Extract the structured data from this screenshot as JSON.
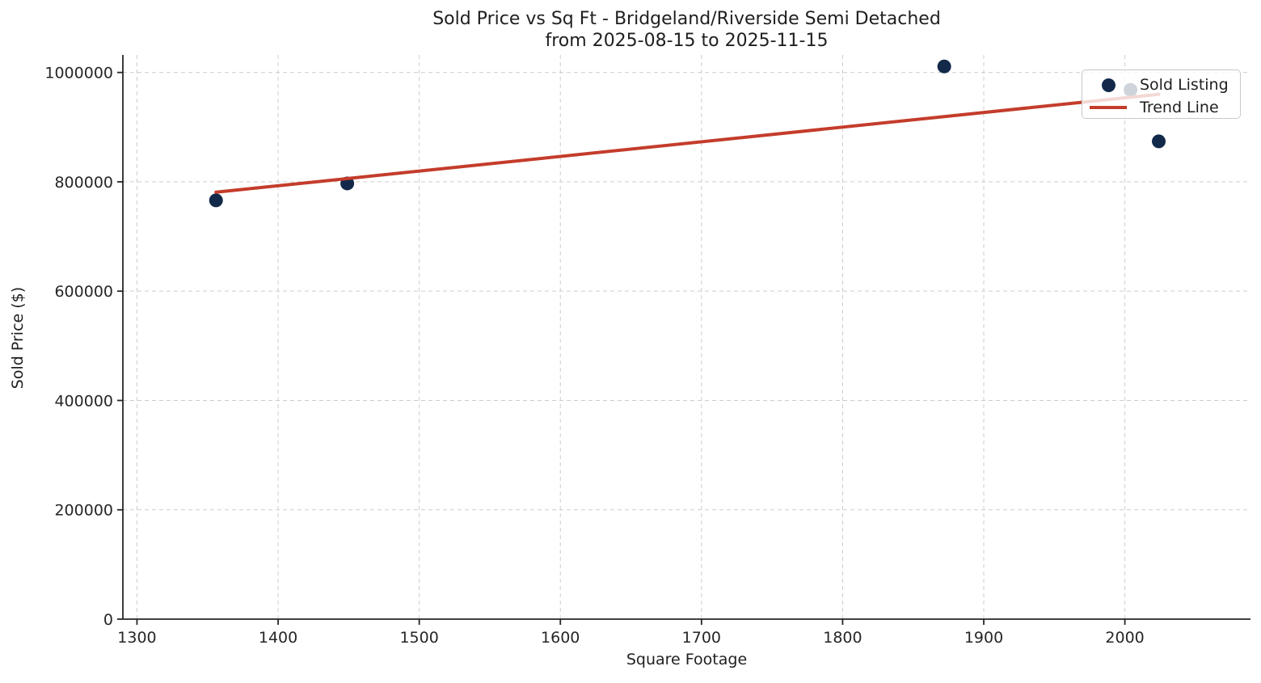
{
  "chart_data": {
    "type": "scatter",
    "title": "Sold Price vs Sq Ft - Bridgeland/Riverside Semi Detached",
    "subtitle": "from 2025-08-15 to 2025-11-15",
    "xlabel": "Square Footage",
    "ylabel": "Sold Price ($)",
    "xlim": [
      1290,
      2089
    ],
    "ylim": [
      0,
      1032000
    ],
    "x_ticks": [
      1300,
      1400,
      1500,
      1600,
      1700,
      1800,
      1900,
      2000
    ],
    "y_ticks": [
      0,
      200000,
      400000,
      600000,
      800000,
      1000000
    ],
    "grid": true,
    "grid_style": "dashed",
    "legend_position": "upper right",
    "series": [
      {
        "name": "Sold Listing",
        "kind": "scatter",
        "color": "#12294a",
        "marker_radius": 8.5,
        "points": [
          {
            "x": 1356,
            "y": 766000
          },
          {
            "x": 1449,
            "y": 797000
          },
          {
            "x": 1872,
            "y": 1011000
          },
          {
            "x": 2004,
            "y": 968000
          },
          {
            "x": 2024,
            "y": 874000
          }
        ]
      },
      {
        "name": "Trend Line",
        "kind": "line",
        "color": "#c43c2b",
        "line_width": 4,
        "points": [
          {
            "x": 1356,
            "y": 781000
          },
          {
            "x": 2024,
            "y": 960000
          }
        ]
      }
    ]
  },
  "colors": {
    "background": "#ffffff",
    "grid": "#cdcdcd",
    "spine": "#262626",
    "tick_label": "#262626",
    "text": "#1f1f1f",
    "marker": "#12294a",
    "trend": "#c43c2b"
  }
}
